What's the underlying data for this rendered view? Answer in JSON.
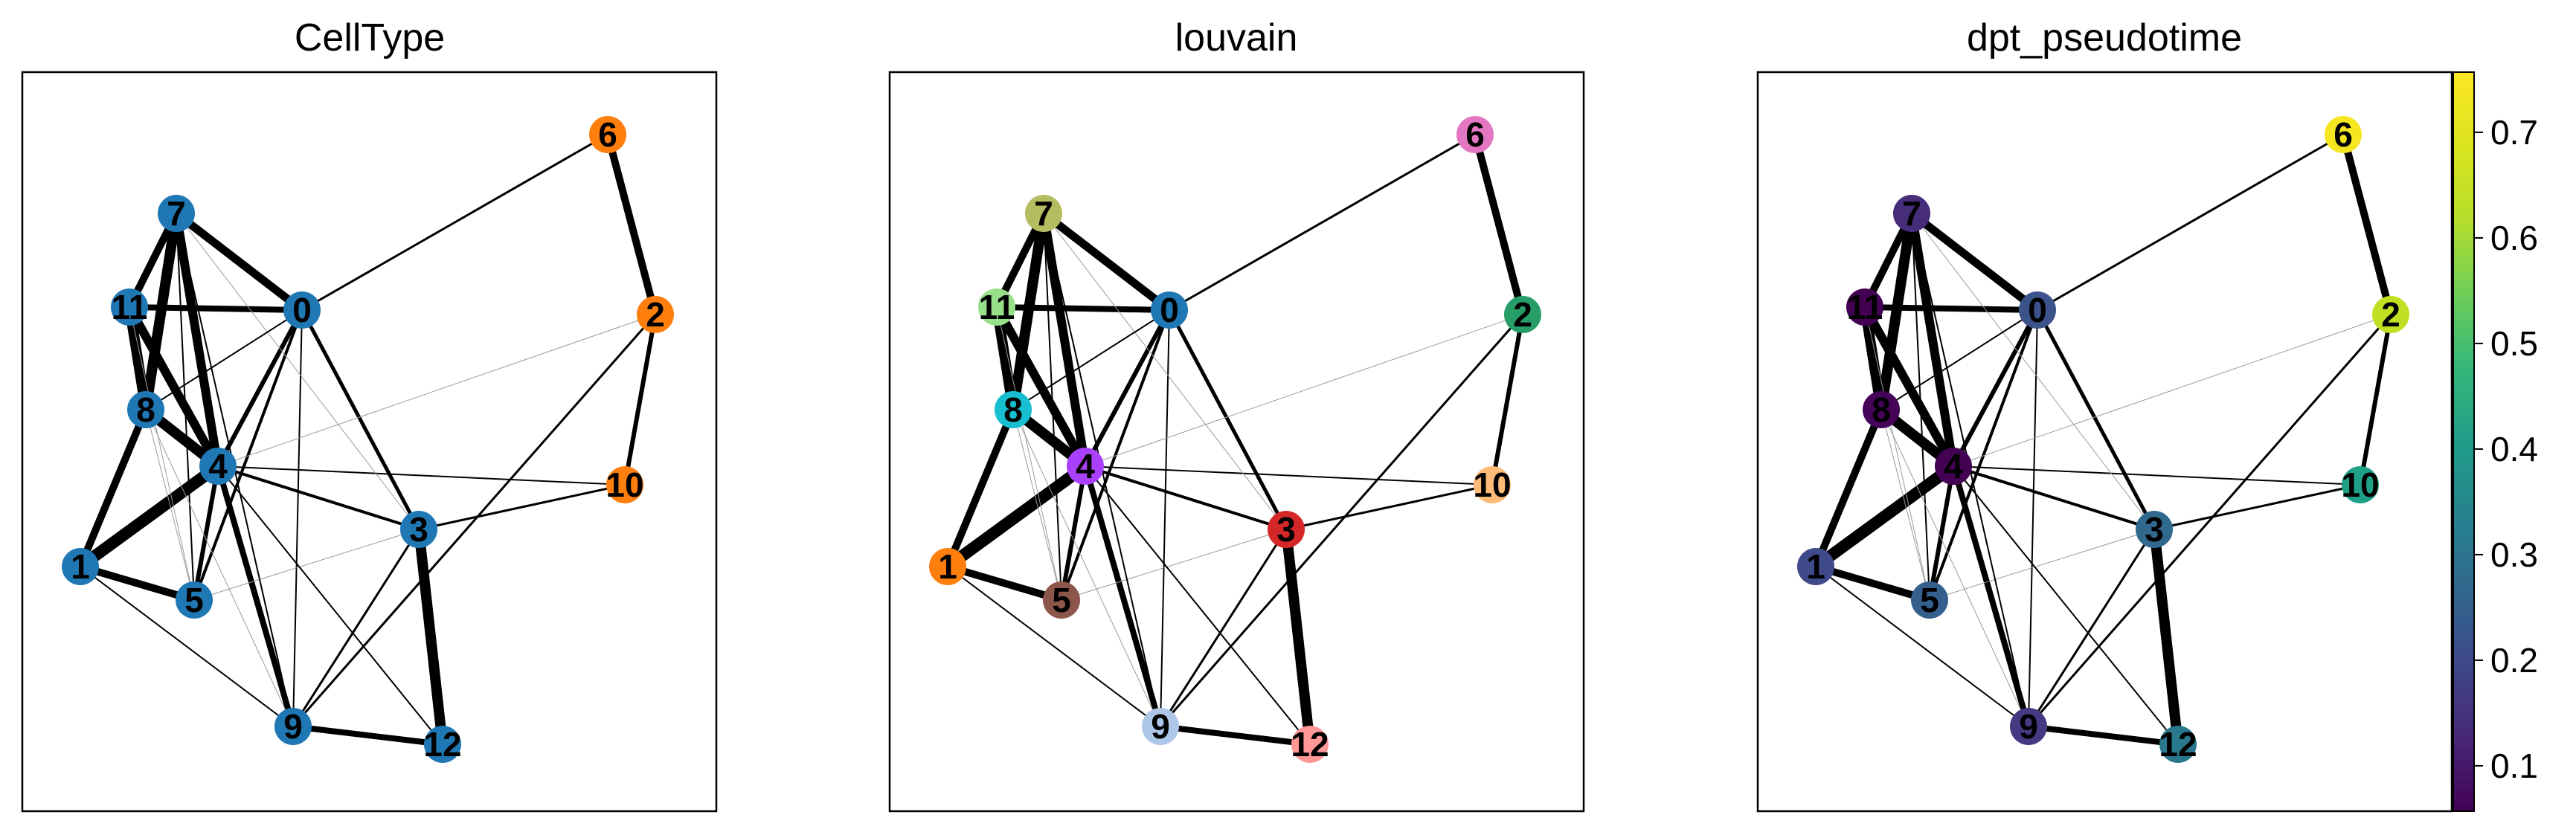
{
  "panels": [
    {
      "title": "CellType",
      "colors": {
        "0": "#1f77b4",
        "1": "#1f77b4",
        "2": "#ff7f0e",
        "3": "#1f77b4",
        "4": "#1f77b4",
        "5": "#1f77b4",
        "6": "#ff7f0e",
        "7": "#1f77b4",
        "8": "#1f77b4",
        "9": "#1f77b4",
        "10": "#ff7f0e",
        "11": "#1f77b4",
        "12": "#1f77b4"
      }
    },
    {
      "title": "louvain",
      "colors": {
        "0": "#1f77b4",
        "1": "#ff7f0e",
        "2": "#279e68",
        "3": "#d62728",
        "4": "#aa40fc",
        "5": "#8c564b",
        "6": "#e377c2",
        "7": "#b5bd61",
        "8": "#17becf",
        "9": "#aec7e8",
        "10": "#ffbb78",
        "11": "#98df8a",
        "12": "#ff9896"
      }
    },
    {
      "title": "dpt_pseudotime",
      "colors": {
        "0": "#3b528b",
        "1": "#3e4a89",
        "2": "#c2df23",
        "3": "#31688e",
        "4": "#440154",
        "5": "#355f8d",
        "6": "#f6e620",
        "7": "#472c7a",
        "8": "#450457",
        "9": "#443983",
        "10": "#1fa187",
        "11": "#440154",
        "12": "#2a788e"
      }
    }
  ],
  "nodes": [
    "0",
    "1",
    "2",
    "3",
    "4",
    "5",
    "6",
    "7",
    "8",
    "9",
    "10",
    "11",
    "12"
  ],
  "edges": [
    [
      "7",
      "11",
      10
    ],
    [
      "7",
      "8",
      14
    ],
    [
      "7",
      "4",
      12
    ],
    [
      "7",
      "0",
      11
    ],
    [
      "11",
      "0",
      8
    ],
    [
      "11",
      "8",
      14
    ],
    [
      "11",
      "4",
      12
    ],
    [
      "8",
      "4",
      14
    ],
    [
      "8",
      "1",
      10
    ],
    [
      "1",
      "4",
      16
    ],
    [
      "1",
      "5",
      10
    ],
    [
      "4",
      "5",
      6
    ],
    [
      "4",
      "9",
      8
    ],
    [
      "0",
      "4",
      6
    ],
    [
      "0",
      "5",
      4
    ],
    [
      "0",
      "3",
      5
    ],
    [
      "0",
      "6",
      3
    ],
    [
      "0",
      "9",
      2
    ],
    [
      "6",
      "2",
      10
    ],
    [
      "2",
      "10",
      6
    ],
    [
      "2",
      "9",
      3
    ],
    [
      "3",
      "12",
      14
    ],
    [
      "3",
      "4",
      4
    ],
    [
      "3",
      "10",
      3
    ],
    [
      "4",
      "10",
      2
    ],
    [
      "3",
      "9",
      3
    ],
    [
      "9",
      "12",
      8
    ],
    [
      "5",
      "3",
      1
    ],
    [
      "1",
      "9",
      2
    ],
    [
      "4",
      "12",
      2
    ],
    [
      "4",
      "2",
      1
    ],
    [
      "7",
      "9",
      2
    ],
    [
      "7",
      "5",
      2
    ],
    [
      "11",
      "5",
      1
    ],
    [
      "8",
      "5",
      1
    ],
    [
      "8",
      "9",
      1
    ],
    [
      "7",
      "3",
      1
    ],
    [
      "8",
      "0",
      2
    ]
  ],
  "colorbar": {
    "ticks": [
      "0.1",
      "0.2",
      "0.3",
      "0.4",
      "0.5",
      "0.6",
      "0.7"
    ],
    "tick_values": [
      0.1,
      0.2,
      0.3,
      0.4,
      0.5,
      0.6,
      0.7
    ],
    "range": [
      0.057,
      0.757
    ]
  }
}
